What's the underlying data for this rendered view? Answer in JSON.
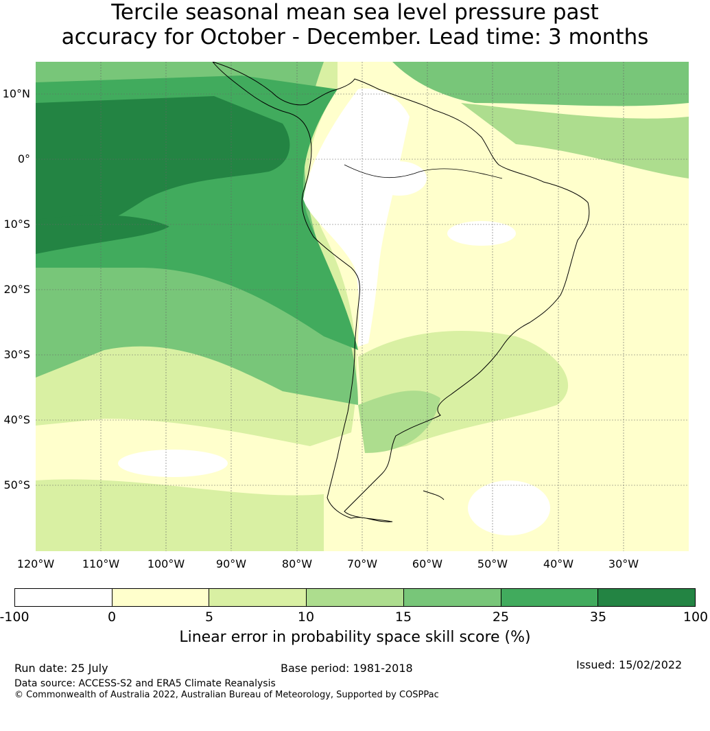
{
  "title_line1": "Tercile seasonal mean sea level pressure past",
  "title_line2": "accuracy for October - December. Lead time: 3 months",
  "map": {
    "lat_labels": [
      "10°N",
      "0°",
      "10°S",
      "20°S",
      "30°S",
      "40°S",
      "50°S"
    ],
    "lon_labels": [
      "120°W",
      "110°W",
      "100°W",
      "90°W",
      "80°W",
      "70°W",
      "60°W",
      "50°W",
      "40°W",
      "30°W"
    ],
    "extent": {
      "lon_min": -120,
      "lon_max": -20,
      "lat_min": -60,
      "lat_max": 15
    }
  },
  "colorbar": {
    "ticks": [
      "-100",
      "0",
      "5",
      "10",
      "15",
      "25",
      "35",
      "100"
    ],
    "colors": [
      "#ffffff",
      "#ffffcc",
      "#d9f0a3",
      "#addd8e",
      "#78c679",
      "#41ab5d",
      "#238443"
    ],
    "label": "Linear error in probability space skill score (%)"
  },
  "footer": {
    "run_date": "Run date: 25 July",
    "base_period": "Base period: 1981-2018",
    "issued": "Issued: 15/02/2022",
    "data_source": "Data source: ACCESS-S2 and ERA5 Climate Reanalysis",
    "copyright": "© Commonwealth of Australia 2022, Australian Bureau of Meteorology, Supported by COSPPac"
  }
}
